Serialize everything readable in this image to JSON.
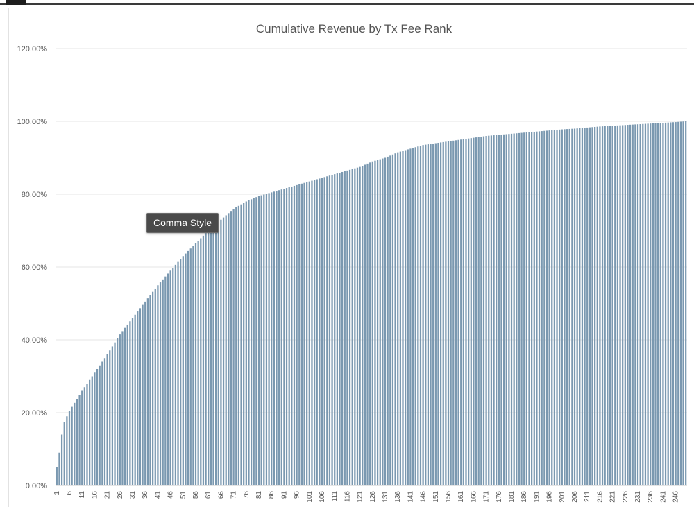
{
  "tooltip": {
    "label": "Comma Style"
  },
  "chart_data": {
    "type": "bar",
    "title": "Cumulative Revenue by Tx Fee Rank",
    "xlabel": "",
    "ylabel": "",
    "ylim": [
      0,
      1.2
    ],
    "yticks": [
      0,
      0.2,
      0.4,
      0.6,
      0.8,
      1.0,
      1.2
    ],
    "ytick_labels": [
      "0.00%",
      "20.00%",
      "40.00%",
      "60.00%",
      "80.00%",
      "100.00%",
      "120.00%"
    ],
    "x_range": [
      1,
      250
    ],
    "xtick_labels": [
      "1",
      "6",
      "11",
      "16",
      "21",
      "26",
      "31",
      "36",
      "41",
      "46",
      "51",
      "56",
      "61",
      "66",
      "71",
      "76",
      "81",
      "86",
      "91",
      "96",
      "101",
      "106",
      "111",
      "116",
      "121",
      "126",
      "131",
      "136",
      "141",
      "146",
      "151",
      "156",
      "161",
      "166",
      "171",
      "176",
      "181",
      "186",
      "191",
      "196",
      "201",
      "206",
      "211",
      "216",
      "221",
      "226",
      "231",
      "236",
      "241",
      "246"
    ],
    "grid": "horizontal",
    "legend": "none",
    "bar_color": "#7a98b0",
    "anchor_points": [
      [
        1,
        0.05
      ],
      [
        2,
        0.09
      ],
      [
        3,
        0.14
      ],
      [
        4,
        0.175
      ],
      [
        5,
        0.19
      ],
      [
        6,
        0.205
      ],
      [
        11,
        0.26
      ],
      [
        16,
        0.31
      ],
      [
        21,
        0.36
      ],
      [
        26,
        0.415
      ],
      [
        31,
        0.46
      ],
      [
        36,
        0.505
      ],
      [
        41,
        0.55
      ],
      [
        46,
        0.59
      ],
      [
        51,
        0.63
      ],
      [
        56,
        0.665
      ],
      [
        61,
        0.7
      ],
      [
        66,
        0.73
      ],
      [
        71,
        0.76
      ],
      [
        76,
        0.78
      ],
      [
        81,
        0.795
      ],
      [
        86,
        0.805
      ],
      [
        91,
        0.815
      ],
      [
        96,
        0.825
      ],
      [
        101,
        0.835
      ],
      [
        106,
        0.845
      ],
      [
        111,
        0.855
      ],
      [
        116,
        0.865
      ],
      [
        121,
        0.875
      ],
      [
        126,
        0.89
      ],
      [
        131,
        0.9
      ],
      [
        136,
        0.915
      ],
      [
        141,
        0.925
      ],
      [
        146,
        0.935
      ],
      [
        151,
        0.94
      ],
      [
        156,
        0.945
      ],
      [
        161,
        0.95
      ],
      [
        166,
        0.955
      ],
      [
        171,
        0.96
      ],
      [
        176,
        0.963
      ],
      [
        181,
        0.966
      ],
      [
        186,
        0.969
      ],
      [
        191,
        0.972
      ],
      [
        196,
        0.975
      ],
      [
        201,
        0.978
      ],
      [
        206,
        0.98
      ],
      [
        211,
        0.983
      ],
      [
        216,
        0.986
      ],
      [
        221,
        0.988
      ],
      [
        226,
        0.99
      ],
      [
        231,
        0.992
      ],
      [
        236,
        0.994
      ],
      [
        241,
        0.996
      ],
      [
        246,
        0.998
      ],
      [
        250,
        1.0
      ]
    ]
  }
}
